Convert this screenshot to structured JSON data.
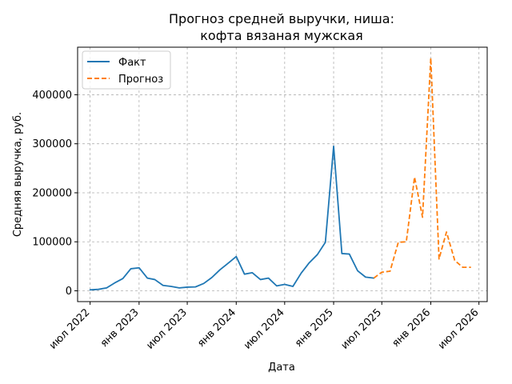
{
  "chart_data": {
    "type": "line",
    "title": [
      "Прогноз средней выручки, ниша:",
      "кофта вязаная мужская"
    ],
    "xlabel": "Дата",
    "ylabel": "Средняя выручка, руб.",
    "xlim": [
      "2022-05-15",
      "2026-08-01"
    ],
    "ylim": [
      -22000,
      497000
    ],
    "xticks": [
      {
        "date": "2022-07-01",
        "label": "июл 2022"
      },
      {
        "date": "2023-01-01",
        "label": "янв 2023"
      },
      {
        "date": "2023-07-01",
        "label": "июл 2023"
      },
      {
        "date": "2024-01-01",
        "label": "янв 2024"
      },
      {
        "date": "2024-07-01",
        "label": "июл 2024"
      },
      {
        "date": "2025-01-01",
        "label": "янв 2025"
      },
      {
        "date": "2025-07-01",
        "label": "июл 2025"
      },
      {
        "date": "2026-01-01",
        "label": "янв 2026"
      },
      {
        "date": "2026-07-01",
        "label": "июл 2026"
      }
    ],
    "yticks": [
      {
        "value": 0,
        "label": "0"
      },
      {
        "value": 100000,
        "label": "100000"
      },
      {
        "value": 200000,
        "label": "200000"
      },
      {
        "value": 300000,
        "label": "300000"
      },
      {
        "value": 400000,
        "label": "400000"
      }
    ],
    "grid": true,
    "legend_position": "top-left",
    "series": [
      {
        "name": "Факт",
        "color": "#1f77b4",
        "style": "solid",
        "points": [
          {
            "x": "2022-07-01",
            "y": 2000
          },
          {
            "x": "2022-08-01",
            "y": 3000
          },
          {
            "x": "2022-09-01",
            "y": 6000
          },
          {
            "x": "2022-10-01",
            "y": 16000
          },
          {
            "x": "2022-11-01",
            "y": 25000
          },
          {
            "x": "2022-12-01",
            "y": 45000
          },
          {
            "x": "2023-01-01",
            "y": 47000
          },
          {
            "x": "2023-02-01",
            "y": 26000
          },
          {
            "x": "2023-03-01",
            "y": 23000
          },
          {
            "x": "2023-04-01",
            "y": 11000
          },
          {
            "x": "2023-05-01",
            "y": 9000
          },
          {
            "x": "2023-06-01",
            "y": 6000
          },
          {
            "x": "2023-07-01",
            "y": 7500
          },
          {
            "x": "2023-08-01",
            "y": 8000
          },
          {
            "x": "2023-09-01",
            "y": 15000
          },
          {
            "x": "2023-10-01",
            "y": 27000
          },
          {
            "x": "2023-11-01",
            "y": 43000
          },
          {
            "x": "2023-12-01",
            "y": 56000
          },
          {
            "x": "2024-01-01",
            "y": 70000
          },
          {
            "x": "2024-02-01",
            "y": 34000
          },
          {
            "x": "2024-03-01",
            "y": 37000
          },
          {
            "x": "2024-04-01",
            "y": 23000
          },
          {
            "x": "2024-05-01",
            "y": 26000
          },
          {
            "x": "2024-06-01",
            "y": 10000
          },
          {
            "x": "2024-07-01",
            "y": 13000
          },
          {
            "x": "2024-08-01",
            "y": 9000
          },
          {
            "x": "2024-09-01",
            "y": 36000
          },
          {
            "x": "2024-10-01",
            "y": 57000
          },
          {
            "x": "2024-11-01",
            "y": 74000
          },
          {
            "x": "2024-12-01",
            "y": 99000
          },
          {
            "x": "2025-01-01",
            "y": 295000
          },
          {
            "x": "2025-02-01",
            "y": 76000
          },
          {
            "x": "2025-03-01",
            "y": 75000
          },
          {
            "x": "2025-04-01",
            "y": 41000
          },
          {
            "x": "2025-05-01",
            "y": 28000
          },
          {
            "x": "2025-06-01",
            "y": 26000
          }
        ]
      },
      {
        "name": "Прогноз",
        "color": "#ff7f0e",
        "style": "dashed",
        "points": [
          {
            "x": "2025-06-01",
            "y": 26000
          },
          {
            "x": "2025-07-01",
            "y": 38000
          },
          {
            "x": "2025-08-01",
            "y": 40000
          },
          {
            "x": "2025-09-01",
            "y": 99000
          },
          {
            "x": "2025-10-01",
            "y": 100000
          },
          {
            "x": "2025-11-01",
            "y": 232000
          },
          {
            "x": "2025-12-01",
            "y": 150000
          },
          {
            "x": "2026-01-01",
            "y": 475000
          },
          {
            "x": "2026-02-01",
            "y": 65000
          },
          {
            "x": "2026-03-01",
            "y": 120000
          },
          {
            "x": "2026-04-01",
            "y": 62000
          },
          {
            "x": "2026-05-01",
            "y": 48000
          },
          {
            "x": "2026-06-01",
            "y": 48000
          }
        ]
      }
    ]
  }
}
